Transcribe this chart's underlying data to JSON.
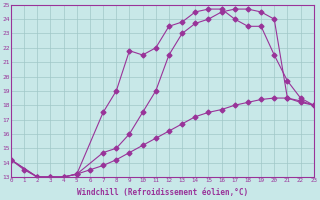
{
  "xlabel": "Windchill (Refroidissement éolien,°C)",
  "bg_color": "#c8e8e8",
  "line_color": "#993399",
  "grid_color": "#a0c8c8",
  "xmin": 0,
  "xmax": 23,
  "ymin": 13,
  "ymax": 25,
  "line1_x": [
    0,
    1,
    2,
    3,
    4,
    5,
    7,
    8,
    9,
    10,
    11,
    12,
    13,
    14,
    15,
    16,
    17,
    18,
    19,
    20,
    21,
    22,
    23
  ],
  "line1_y": [
    14.2,
    13.5,
    13.0,
    13.0,
    13.0,
    13.2,
    14.7,
    15.0,
    16.0,
    17.5,
    19.0,
    21.5,
    23.0,
    23.7,
    24.0,
    24.5,
    24.7,
    24.7,
    24.5,
    24.0,
    18.5,
    18.2,
    18.0
  ],
  "line2_x": [
    0,
    2,
    3,
    4,
    5,
    7,
    8,
    9,
    10,
    11,
    12,
    13,
    14,
    15,
    16,
    17,
    18,
    19,
    20,
    21,
    22,
    23
  ],
  "line2_y": [
    14.2,
    13.0,
    13.0,
    13.0,
    13.2,
    17.5,
    19.0,
    21.8,
    21.5,
    22.0,
    23.5,
    23.8,
    24.5,
    24.7,
    24.7,
    24.0,
    23.5,
    23.5,
    21.5,
    19.7,
    18.5,
    18.0
  ],
  "line3_x": [
    0,
    2,
    3,
    4,
    5,
    6,
    7,
    8,
    9,
    10,
    11,
    12,
    13,
    14,
    15,
    16,
    17,
    18,
    19,
    20,
    21,
    22,
    23
  ],
  "line3_y": [
    14.2,
    13.0,
    13.0,
    13.0,
    13.2,
    13.5,
    13.8,
    14.2,
    14.7,
    15.2,
    15.7,
    16.2,
    16.7,
    17.2,
    17.5,
    17.7,
    18.0,
    18.2,
    18.4,
    18.5,
    18.5,
    18.3,
    18.0
  ]
}
